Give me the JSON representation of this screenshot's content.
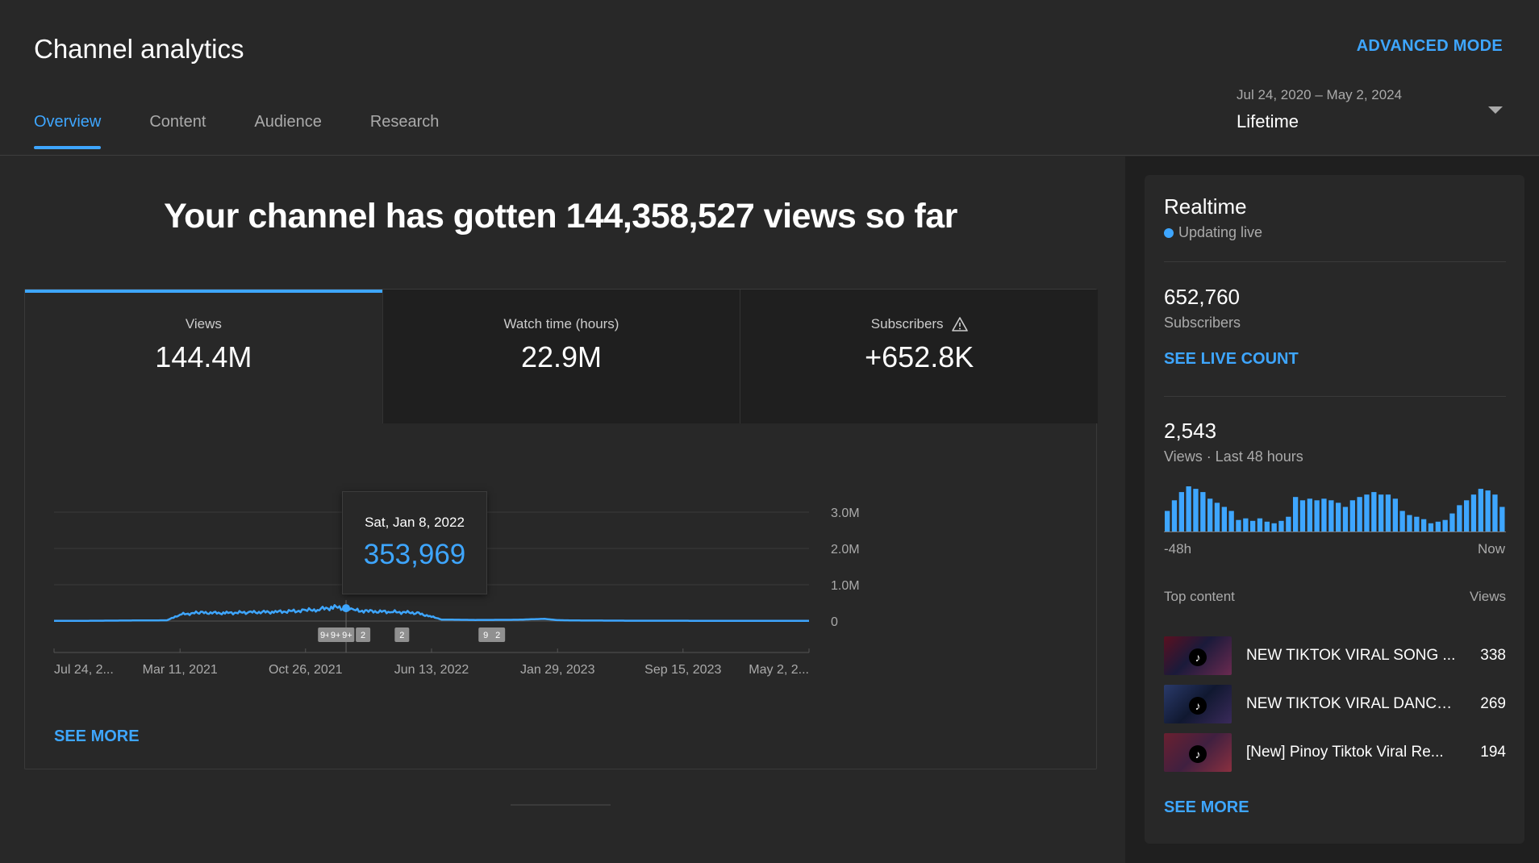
{
  "header": {
    "title": "Channel analytics",
    "advanced_mode": "ADVANCED MODE",
    "tabs": [
      {
        "label": "Overview"
      },
      {
        "label": "Content"
      },
      {
        "label": "Audience"
      },
      {
        "label": "Research"
      }
    ],
    "date_range": "Jul 24, 2020 – May 2, 2024",
    "date_preset": "Lifetime"
  },
  "main": {
    "headline": "Your channel has gotten 144,358,527 views so far",
    "metrics": [
      {
        "label": "Views",
        "value": "144.4M"
      },
      {
        "label": "Watch time (hours)",
        "value": "22.9M"
      },
      {
        "label": "Subscribers",
        "value": "+652.8K"
      }
    ],
    "tooltip": {
      "date": "Sat, Jan 8, 2022",
      "value": "353,969"
    },
    "see_more": "SEE MORE"
  },
  "chart_data": {
    "type": "line",
    "title": "",
    "ylabel": "",
    "xlabel": "",
    "ylim": [
      0,
      3000000
    ],
    "y_ticks": [
      "3.0M",
      "2.0M",
      "1.0M",
      "0"
    ],
    "y_tick_values": [
      3000000,
      2000000,
      1000000,
      0
    ],
    "x_ticks": [
      "Jul 24, 2...",
      "Mar 11, 2021",
      "Oct 26, 2021",
      "Jun 13, 2022",
      "Jan 29, 2023",
      "Sep 15, 2023",
      "May 2, 2..."
    ],
    "series": [
      {
        "x": [
          "2020-07-24",
          "2020-10-01",
          "2021-02-15",
          "2021-03-11",
          "2021-04-15",
          "2021-06-01",
          "2021-07-15",
          "2021-09-01",
          "2021-10-26",
          "2021-11-20",
          "2021-12-15",
          "2022-01-08",
          "2022-01-20",
          "2022-02-15",
          "2022-04-01",
          "2022-05-15",
          "2022-06-13",
          "2022-07-01",
          "2022-09-01",
          "2022-11-15",
          "2023-01-05",
          "2023-01-29",
          "2023-03-01",
          "2023-06-01",
          "2023-09-15",
          "2024-01-01",
          "2024-05-02"
        ],
        "values": [
          5000,
          8000,
          20000,
          180000,
          230000,
          220000,
          240000,
          250000,
          290000,
          320000,
          380000,
          353969,
          300000,
          270000,
          250000,
          230000,
          120000,
          40000,
          30000,
          35000,
          60000,
          25000,
          15000,
          10000,
          8000,
          6000,
          5000
        ]
      }
    ],
    "markers": [
      {
        "x": "2021-12-01",
        "label": "9+"
      },
      {
        "x": "2021-12-20",
        "label": "9+"
      },
      {
        "x": "2022-01-10",
        "label": "9+"
      },
      {
        "x": "2022-02-08",
        "label": "2"
      },
      {
        "x": "2022-04-20",
        "label": "2"
      },
      {
        "x": "2022-09-20",
        "label": "9"
      },
      {
        "x": "2022-10-12",
        "label": "2"
      }
    ],
    "highlight": {
      "x": "2022-01-08",
      "value": 353969
    }
  },
  "realtime": {
    "title": "Realtime",
    "status": "Updating live",
    "subscribers": "652,760",
    "subscribers_label": "Subscribers",
    "see_live_count": "SEE LIVE COUNT",
    "views": "2,543",
    "views_label": "Views · Last 48 hours",
    "mini_chart_left": "-48h",
    "mini_chart_right": "Now",
    "hourly_views": [
      25,
      38,
      48,
      55,
      52,
      48,
      40,
      35,
      30,
      25,
      14,
      16,
      13,
      16,
      12,
      10,
      13,
      18,
      42,
      38,
      40,
      38,
      40,
      38,
      35,
      30,
      38,
      42,
      45,
      48,
      45,
      45,
      40,
      25,
      20,
      18,
      15,
      10,
      12,
      14,
      22,
      32,
      38,
      45,
      52,
      50,
      45,
      30
    ],
    "top_content_label": "Top content",
    "views_col": "Views",
    "top_content": [
      {
        "title": "NEW TIKTOK VIRAL SONG ...",
        "views": "338"
      },
      {
        "title": "NEW TIKTOK VIRAL DANCE...",
        "views": "269"
      },
      {
        "title": "[New] Pinoy Tiktok Viral Re...",
        "views": "194"
      }
    ],
    "see_more": "SEE MORE"
  },
  "colors": {
    "accent": "#3ea6ff",
    "background": "#282828",
    "panel": "#1f1f1f",
    "line": "#3ea6ff"
  }
}
